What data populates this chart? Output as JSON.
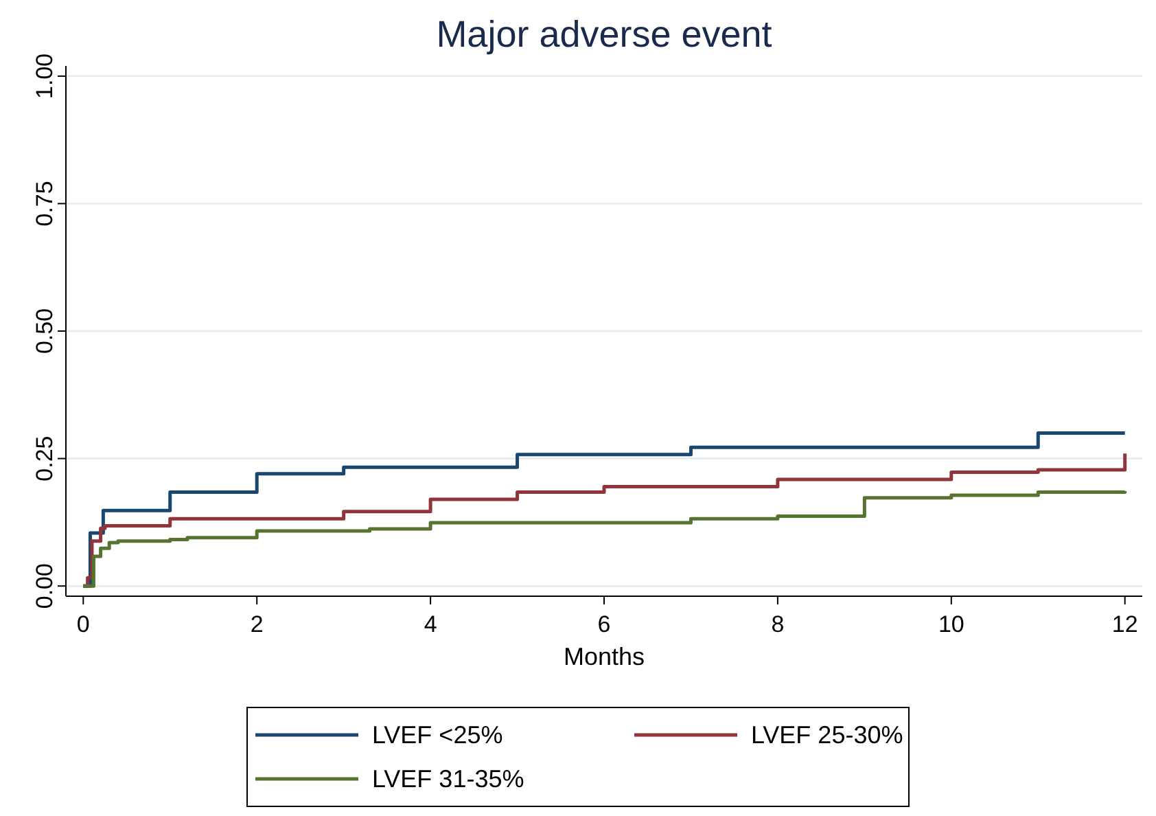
{
  "chart_data": {
    "type": "step",
    "title": "Major adverse event",
    "xlabel": "Months",
    "xlim": [
      -0.2,
      12.2
    ],
    "xticks": [
      0,
      2,
      4,
      6,
      8,
      10,
      12
    ],
    "ylim": [
      -0.02,
      1.02
    ],
    "yticks": [
      {
        "value": 0,
        "label": "0.00"
      },
      {
        "value": 0.25,
        "label": "0.25"
      },
      {
        "value": 0.5,
        "label": "0.50"
      },
      {
        "value": 0.75,
        "label": "0.75"
      },
      {
        "value": 1,
        "label": "1.00"
      }
    ],
    "grid": "y",
    "legend": "bottom",
    "series": [
      {
        "name": "LVEF <25%",
        "color": "#1a476f",
        "x": [
          0,
          0.08,
          0.23,
          1,
          2,
          3,
          5,
          7,
          11,
          12
        ],
        "values": [
          0,
          0.104,
          0.148,
          0.184,
          0.22,
          0.233,
          0.258,
          0.272,
          0.3,
          0.3
        ]
      },
      {
        "name": "LVEF 25-30%",
        "color": "#90353b",
        "x": [
          0,
          0.05,
          0.1,
          0.2,
          0.25,
          1,
          3,
          4,
          5,
          6,
          8,
          10,
          11,
          12
        ],
        "values": [
          0,
          0.016,
          0.088,
          0.113,
          0.118,
          0.132,
          0.146,
          0.17,
          0.184,
          0.195,
          0.209,
          0.223,
          0.228,
          0.26
        ]
      },
      {
        "name": "LVEF 31-35%",
        "color": "#55752f",
        "x": [
          0,
          0.12,
          0.2,
          0.3,
          0.4,
          1,
          1.2,
          2,
          3.3,
          4,
          7,
          8,
          9,
          10,
          11,
          12
        ],
        "values": [
          0,
          0.058,
          0.074,
          0.085,
          0.088,
          0.091,
          0.095,
          0.108,
          0.112,
          0.124,
          0.132,
          0.137,
          0.173,
          0.178,
          0.184,
          0.186
        ]
      }
    ]
  }
}
